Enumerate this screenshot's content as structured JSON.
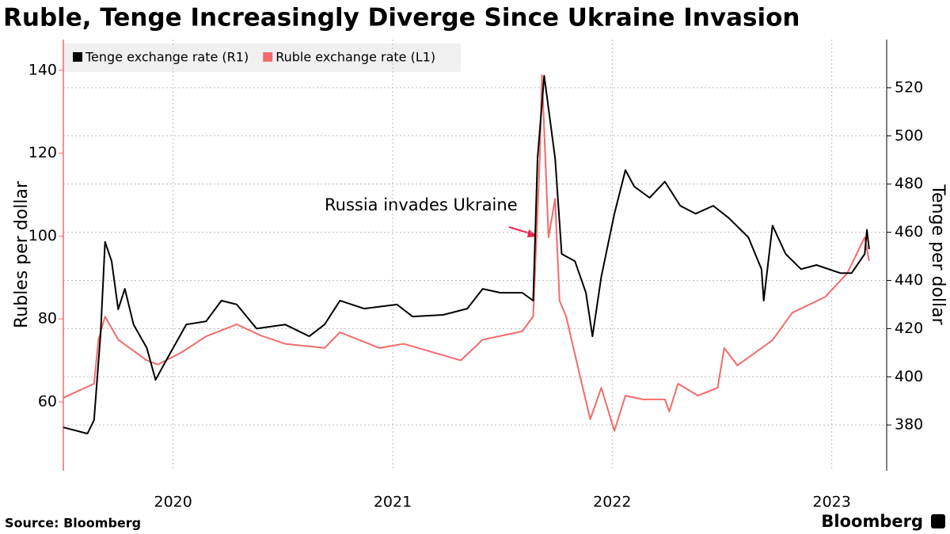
{
  "chart_data": {
    "type": "line",
    "title": "Ruble, Tenge Increasingly Diverge Since Ukraine Invasion",
    "ylabel": "Rubles per dollar",
    "y2label": "Tenge per dollar",
    "source": "Source: Bloomberg",
    "brand": "Bloomberg",
    "annotation": "Russia invades Ukraine",
    "legend": "top-left",
    "grid": true,
    "xlim": [
      2020,
      2023.75
    ],
    "xticks": [
      {
        "value": 2020.5,
        "label": "2020"
      },
      {
        "value": 2021.5,
        "label": "2021"
      },
      {
        "value": 2022.5,
        "label": "2022"
      },
      {
        "value": 2023.5,
        "label": "2023"
      }
    ],
    "ylim": [
      43.4,
      147.4
    ],
    "yticks": [
      60,
      80,
      100,
      120,
      140
    ],
    "y2lim": [
      361,
      540
    ],
    "y2ticks": [
      380,
      400,
      420,
      440,
      460,
      480,
      500,
      520
    ],
    "series": [
      {
        "name": "Tenge exchange rate (R1)",
        "color": "#000000",
        "axis": "y2",
        "x": [
          2020.0,
          2020.11,
          2020.14,
          2020.17,
          2020.19,
          2020.22,
          2020.25,
          2020.28,
          2020.32,
          2020.38,
          2020.42,
          2020.47,
          2020.56,
          2020.65,
          2020.72,
          2020.79,
          2020.88,
          2021.01,
          2021.12,
          2021.19,
          2021.26,
          2021.37,
          2021.52,
          2021.59,
          2021.73,
          2021.84,
          2021.91,
          2021.99,
          2022.09,
          2022.14,
          2022.16,
          2022.19,
          2022.24,
          2022.27,
          2022.33,
          2022.38,
          2022.41,
          2022.45,
          2022.51,
          2022.56,
          2022.6,
          2022.67,
          2022.74,
          2022.81,
          2022.88,
          2022.96,
          2023.03,
          2023.12,
          2023.18,
          2023.19,
          2023.23,
          2023.29,
          2023.36,
          2023.43,
          2023.54,
          2023.59,
          2023.65,
          2023.66,
          2023.67
        ],
        "values": [
          379,
          376.4,
          382,
          418,
          456,
          448,
          428,
          436.5,
          421.7,
          412,
          398.7,
          407,
          421.7,
          423,
          431.6,
          430,
          420,
          421.7,
          416.8,
          421.7,
          431.6,
          428.3,
          430,
          425,
          425.7,
          428.3,
          436.5,
          434.9,
          434.9,
          431.6,
          490.7,
          525,
          490.7,
          451,
          448,
          434.9,
          416.8,
          441.5,
          467.7,
          485.8,
          479,
          474.3,
          481,
          471,
          467.7,
          471,
          466,
          457.9,
          444.7,
          431.6,
          462.8,
          451,
          444.7,
          446.4,
          443,
          443,
          451,
          461,
          453
        ]
      },
      {
        "name": "Ruble exchange rate (L1)",
        "color": "#f26b6b",
        "axis": "y",
        "x": [
          2020.0,
          2020.14,
          2020.16,
          2020.19,
          2020.25,
          2020.38,
          2020.43,
          2020.54,
          2020.65,
          2020.79,
          2020.9,
          2021.01,
          2021.19,
          2021.26,
          2021.44,
          2021.55,
          2021.81,
          2021.91,
          2022.09,
          2022.14,
          2022.17,
          2022.18,
          2022.21,
          2022.24,
          2022.26,
          2022.29,
          2022.35,
          2022.4,
          2022.45,
          2022.51,
          2022.56,
          2022.64,
          2022.74,
          2022.76,
          2022.8,
          2022.89,
          2022.98,
          2023.01,
          2023.07,
          2023.23,
          2023.32,
          2023.47,
          2023.57,
          2023.65,
          2023.67
        ],
        "values": [
          61,
          64.4,
          75,
          80.6,
          75,
          70,
          69,
          72,
          75.8,
          78.7,
          76,
          74,
          73,
          76.8,
          73,
          74,
          70,
          75,
          77,
          80.6,
          118.8,
          138.8,
          99.7,
          109,
          84.4,
          80.6,
          67,
          55.8,
          63.4,
          53,
          61.5,
          60.6,
          60.6,
          57.7,
          64.4,
          61.5,
          63.4,
          73,
          68.8,
          74.9,
          81.5,
          85.3,
          91,
          99.7,
          94
        ]
      }
    ]
  }
}
